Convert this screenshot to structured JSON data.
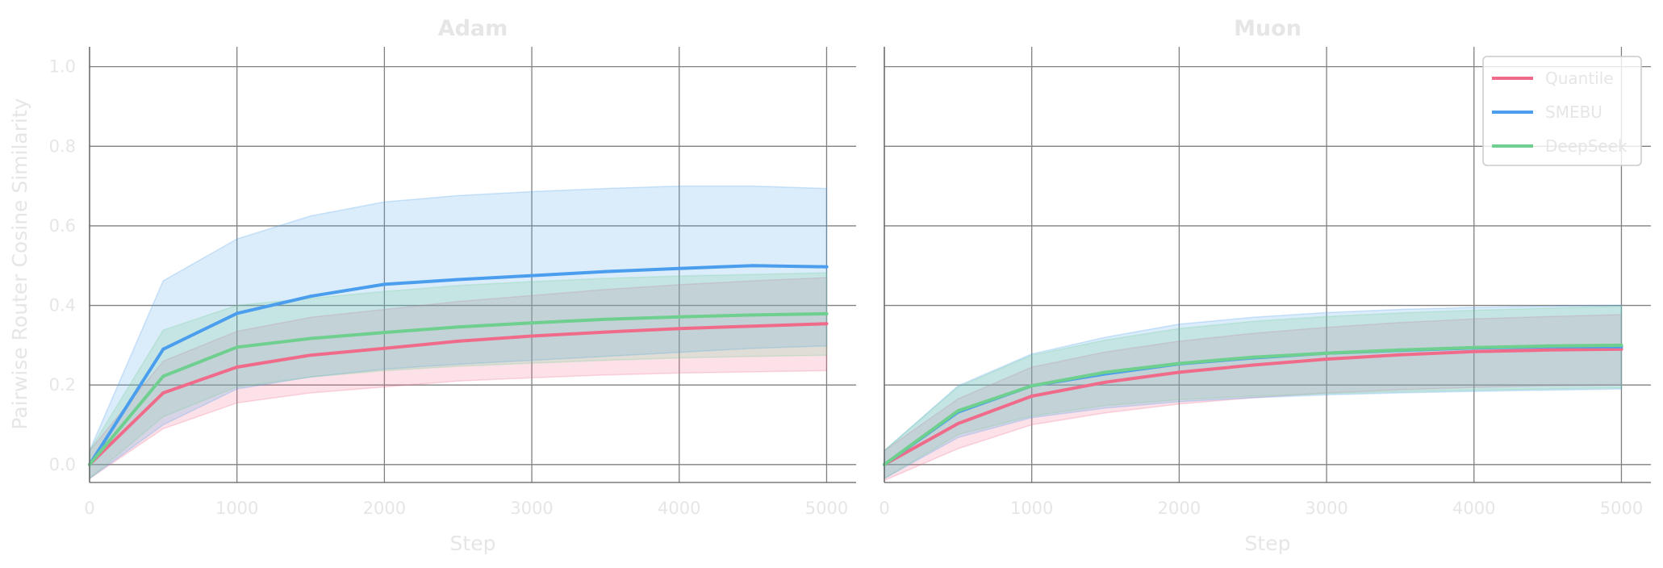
{
  "chart_data": [
    {
      "type": "line",
      "title": "Adam",
      "xlabel": "Step",
      "ylabel": "Pairwise Router Cosine Similarity",
      "xlim": [
        0,
        5200
      ],
      "ylim": [
        -0.045,
        1.05
      ],
      "xticks": [
        "0",
        "1000",
        "2000",
        "3000",
        "4000",
        "5000"
      ],
      "yticks": [
        "0.0",
        "0.2",
        "0.4",
        "0.6",
        "0.8",
        "1.0"
      ],
      "grid": true,
      "legend": null,
      "x": [
        0,
        500,
        1000,
        1500,
        2000,
        2500,
        3000,
        3500,
        4000,
        4500,
        5000
      ],
      "series": [
        {
          "name": "Quantile",
          "color": "#f06b8a",
          "values": [
            0.0,
            0.18,
            0.245,
            0.275,
            0.292,
            0.31,
            0.323,
            0.333,
            0.342,
            0.348,
            0.354
          ],
          "lower": [
            -0.035,
            0.09,
            0.155,
            0.18,
            0.195,
            0.21,
            0.218,
            0.225,
            0.23,
            0.233,
            0.236
          ],
          "upper": [
            0.035,
            0.26,
            0.335,
            0.37,
            0.39,
            0.41,
            0.425,
            0.44,
            0.452,
            0.462,
            0.47
          ]
        },
        {
          "name": "SMEBU",
          "color": "#4a9eed",
          "values": [
            0.0,
            0.29,
            0.38,
            0.423,
            0.453,
            0.465,
            0.475,
            0.485,
            0.493,
            0.5,
            0.497
          ],
          "lower": [
            -0.035,
            0.1,
            0.19,
            0.22,
            0.24,
            0.252,
            0.262,
            0.272,
            0.282,
            0.292,
            0.298
          ],
          "upper": [
            0.035,
            0.462,
            0.567,
            0.625,
            0.66,
            0.676,
            0.686,
            0.694,
            0.7,
            0.7,
            0.694
          ]
        },
        {
          "name": "DeepSeek",
          "color": "#6fcf8f",
          "values": [
            0.0,
            0.222,
            0.295,
            0.317,
            0.332,
            0.346,
            0.356,
            0.365,
            0.371,
            0.376,
            0.379
          ],
          "lower": [
            -0.035,
            0.12,
            0.195,
            0.22,
            0.236,
            0.247,
            0.255,
            0.262,
            0.268,
            0.272,
            0.275
          ],
          "upper": [
            0.035,
            0.338,
            0.4,
            0.418,
            0.435,
            0.45,
            0.46,
            0.468,
            0.474,
            0.478,
            0.482
          ]
        }
      ]
    },
    {
      "type": "line",
      "title": "Muon",
      "xlabel": "Step",
      "ylabel": "",
      "xlim": [
        0,
        5200
      ],
      "ylim": [
        -0.045,
        1.05
      ],
      "xticks": [
        "0",
        "1000",
        "2000",
        "3000",
        "4000",
        "5000"
      ],
      "yticks": [],
      "grid": true,
      "legend": "top-right",
      "x": [
        0,
        500,
        1000,
        1500,
        2000,
        2500,
        3000,
        3500,
        4000,
        4500,
        5000
      ],
      "series": [
        {
          "name": "Quantile",
          "color": "#f06b8a",
          "values": [
            0.0,
            0.103,
            0.172,
            0.207,
            0.232,
            0.25,
            0.265,
            0.276,
            0.284,
            0.288,
            0.29
          ],
          "lower": [
            -0.04,
            0.04,
            0.1,
            0.13,
            0.152,
            0.168,
            0.18,
            0.188,
            0.194,
            0.198,
            0.2
          ],
          "upper": [
            0.035,
            0.165,
            0.245,
            0.283,
            0.31,
            0.33,
            0.345,
            0.357,
            0.366,
            0.372,
            0.377
          ]
        },
        {
          "name": "SMEBU",
          "color": "#4a9eed",
          "values": [
            0.0,
            0.132,
            0.198,
            0.228,
            0.253,
            0.268,
            0.28,
            0.287,
            0.293,
            0.296,
            0.296
          ],
          "lower": [
            -0.035,
            0.068,
            0.118,
            0.142,
            0.158,
            0.168,
            0.175,
            0.18,
            0.184,
            0.187,
            0.19
          ],
          "upper": [
            0.035,
            0.198,
            0.278,
            0.32,
            0.353,
            0.37,
            0.382,
            0.39,
            0.395,
            0.398,
            0.4
          ]
        },
        {
          "name": "DeepSeek",
          "color": "#6fcf8f",
          "values": [
            0.0,
            0.135,
            0.198,
            0.232,
            0.254,
            0.27,
            0.28,
            0.288,
            0.294,
            0.298,
            0.3
          ],
          "lower": [
            -0.035,
            0.075,
            0.122,
            0.148,
            0.163,
            0.172,
            0.178,
            0.183,
            0.187,
            0.19,
            0.193
          ],
          "upper": [
            0.035,
            0.195,
            0.275,
            0.313,
            0.342,
            0.36,
            0.372,
            0.381,
            0.388,
            0.393,
            0.398
          ]
        }
      ]
    }
  ]
}
